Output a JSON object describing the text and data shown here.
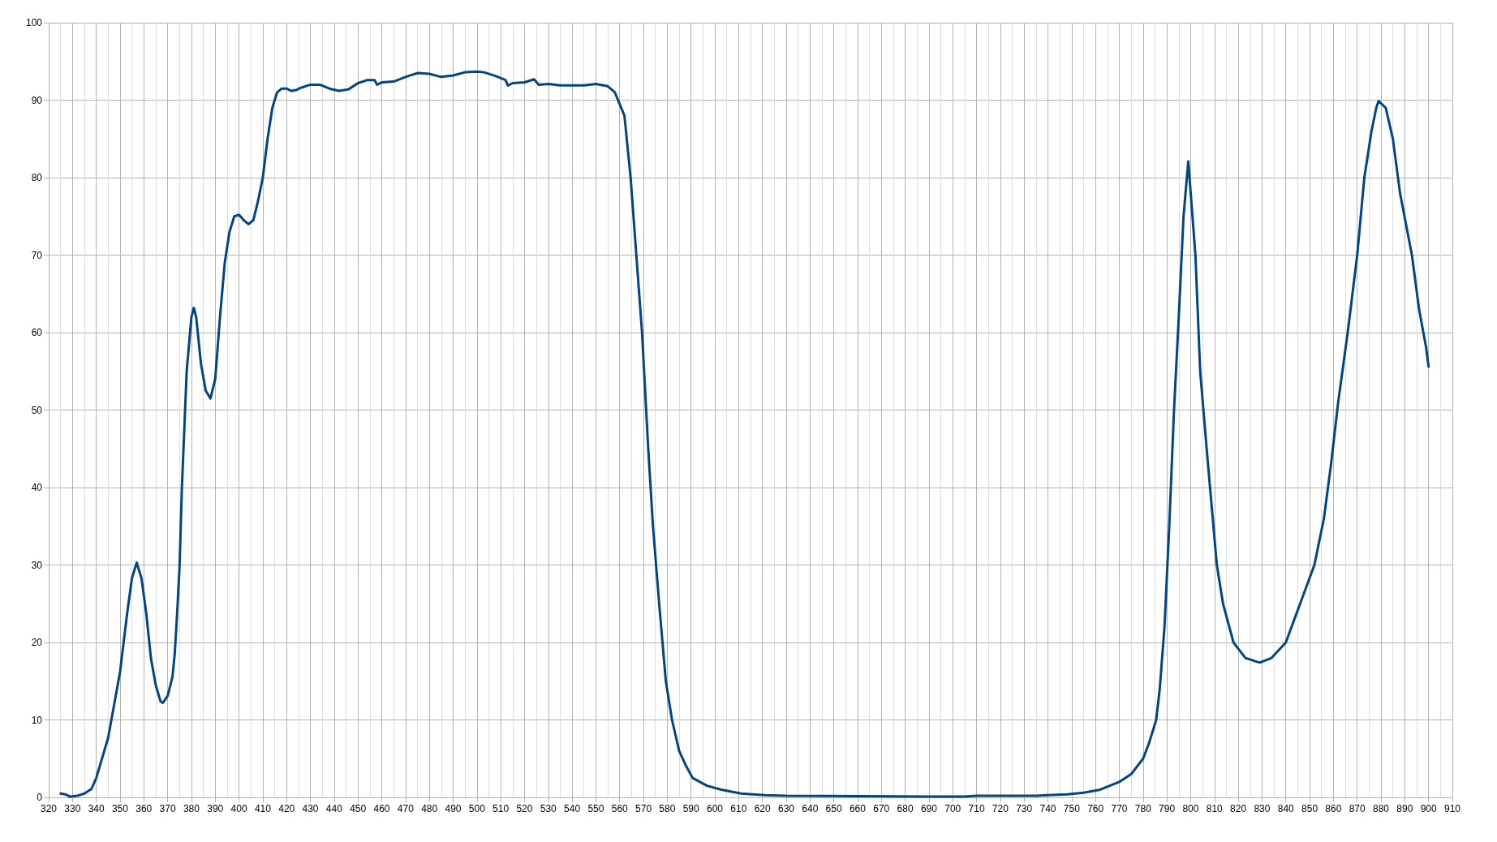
{
  "chart_data": {
    "type": "line",
    "xlim": [
      320,
      910
    ],
    "ylim": [
      0,
      100
    ],
    "xticks": [
      320,
      330,
      340,
      350,
      360,
      370,
      380,
      390,
      400,
      410,
      420,
      430,
      440,
      450,
      460,
      470,
      480,
      490,
      500,
      510,
      520,
      530,
      540,
      550,
      560,
      570,
      580,
      590,
      600,
      610,
      620,
      630,
      640,
      650,
      660,
      670,
      680,
      690,
      700,
      710,
      720,
      730,
      740,
      750,
      760,
      770,
      780,
      790,
      800,
      810,
      820,
      830,
      840,
      850,
      860,
      870,
      880,
      890,
      900,
      910
    ],
    "yticks": [
      0,
      10,
      20,
      30,
      40,
      50,
      60,
      70,
      80,
      90,
      100
    ],
    "grid": true,
    "marker": "none",
    "line_style": "solid",
    "series": [
      {
        "color": "#004586",
        "x": [
          325,
          327,
          329,
          332,
          335,
          338,
          340,
          345,
          350,
          353,
          355,
          357,
          359,
          361,
          363,
          365,
          367,
          368,
          370,
          372,
          373,
          374,
          375,
          376,
          378,
          380,
          381,
          382,
          384,
          386,
          388,
          390,
          392,
          394,
          396,
          398,
          400,
          402,
          404,
          406,
          408,
          410,
          412,
          414,
          416,
          418,
          420,
          422,
          424,
          426,
          430,
          434,
          438,
          442,
          446,
          450,
          454,
          457,
          458,
          460,
          465,
          470,
          475,
          480,
          485,
          490,
          495,
          500,
          503,
          508,
          512,
          513,
          515,
          520,
          524,
          526,
          530,
          535,
          545,
          550,
          555,
          558,
          562,
          564.6,
          567,
          569.4,
          572,
          574,
          576.6,
          579.4,
          582,
          585,
          588,
          590.7,
          596.7,
          602.7,
          611,
          621,
          630,
          690,
          705,
          710,
          735,
          740,
          748,
          755,
          762,
          770,
          775,
          780,
          782.5,
          785.5,
          787,
          789,
          791,
          793,
          795,
          797,
          799,
          802,
          804,
          807,
          811,
          813.6,
          818,
          823,
          829,
          834,
          840,
          846,
          852,
          856,
          859,
          862,
          866,
          870,
          873,
          876,
          878,
          879,
          882,
          885,
          888,
          893,
          896,
          899,
          900
        ],
        "values": [
          0.5,
          0.4,
          0.1,
          0.2,
          0.5,
          1.1,
          2.5,
          7.7,
          16.2,
          23.8,
          28.3,
          30.3,
          28.3,
          23.8,
          17.9,
          14.5,
          12.4,
          12.2,
          13.1,
          15.5,
          18.6,
          23.8,
          29.7,
          40,
          55,
          62,
          63.2,
          62,
          56,
          52.5,
          51.5,
          54,
          62,
          69,
          73,
          75,
          75.2,
          74.5,
          74,
          74.5,
          77,
          80,
          85,
          89,
          91,
          91.5,
          91.5,
          91.2,
          91.3,
          91.6,
          92,
          92,
          91.5,
          91.2,
          91.4,
          92.2,
          92.6,
          92.6,
          92,
          92.3,
          92.4,
          93,
          93.5,
          93.4,
          93,
          93.2,
          93.6,
          93.7,
          93.6,
          93.1,
          92.6,
          91.9,
          92.2,
          92.3,
          92.7,
          92,
          92.1,
          91.9,
          91.9,
          92.1,
          91.8,
          91,
          88,
          80,
          70,
          60,
          45,
          35,
          25,
          15,
          10,
          6,
          4,
          2.5,
          1.5,
          1,
          0.5,
          0.3,
          0.2,
          0.1,
          0.1,
          0.2,
          0.2,
          0.3,
          0.4,
          0.6,
          1,
          2,
          3,
          5,
          7,
          10,
          14,
          22,
          35,
          50,
          62,
          75,
          82.1,
          70,
          55,
          44,
          30,
          25,
          20,
          18,
          17.4,
          18,
          20,
          25,
          30,
          36,
          43,
          51,
          60,
          70,
          80,
          86,
          89,
          89.9,
          89,
          85,
          78,
          70,
          63,
          58,
          55.6
        ]
      }
    ]
  }
}
